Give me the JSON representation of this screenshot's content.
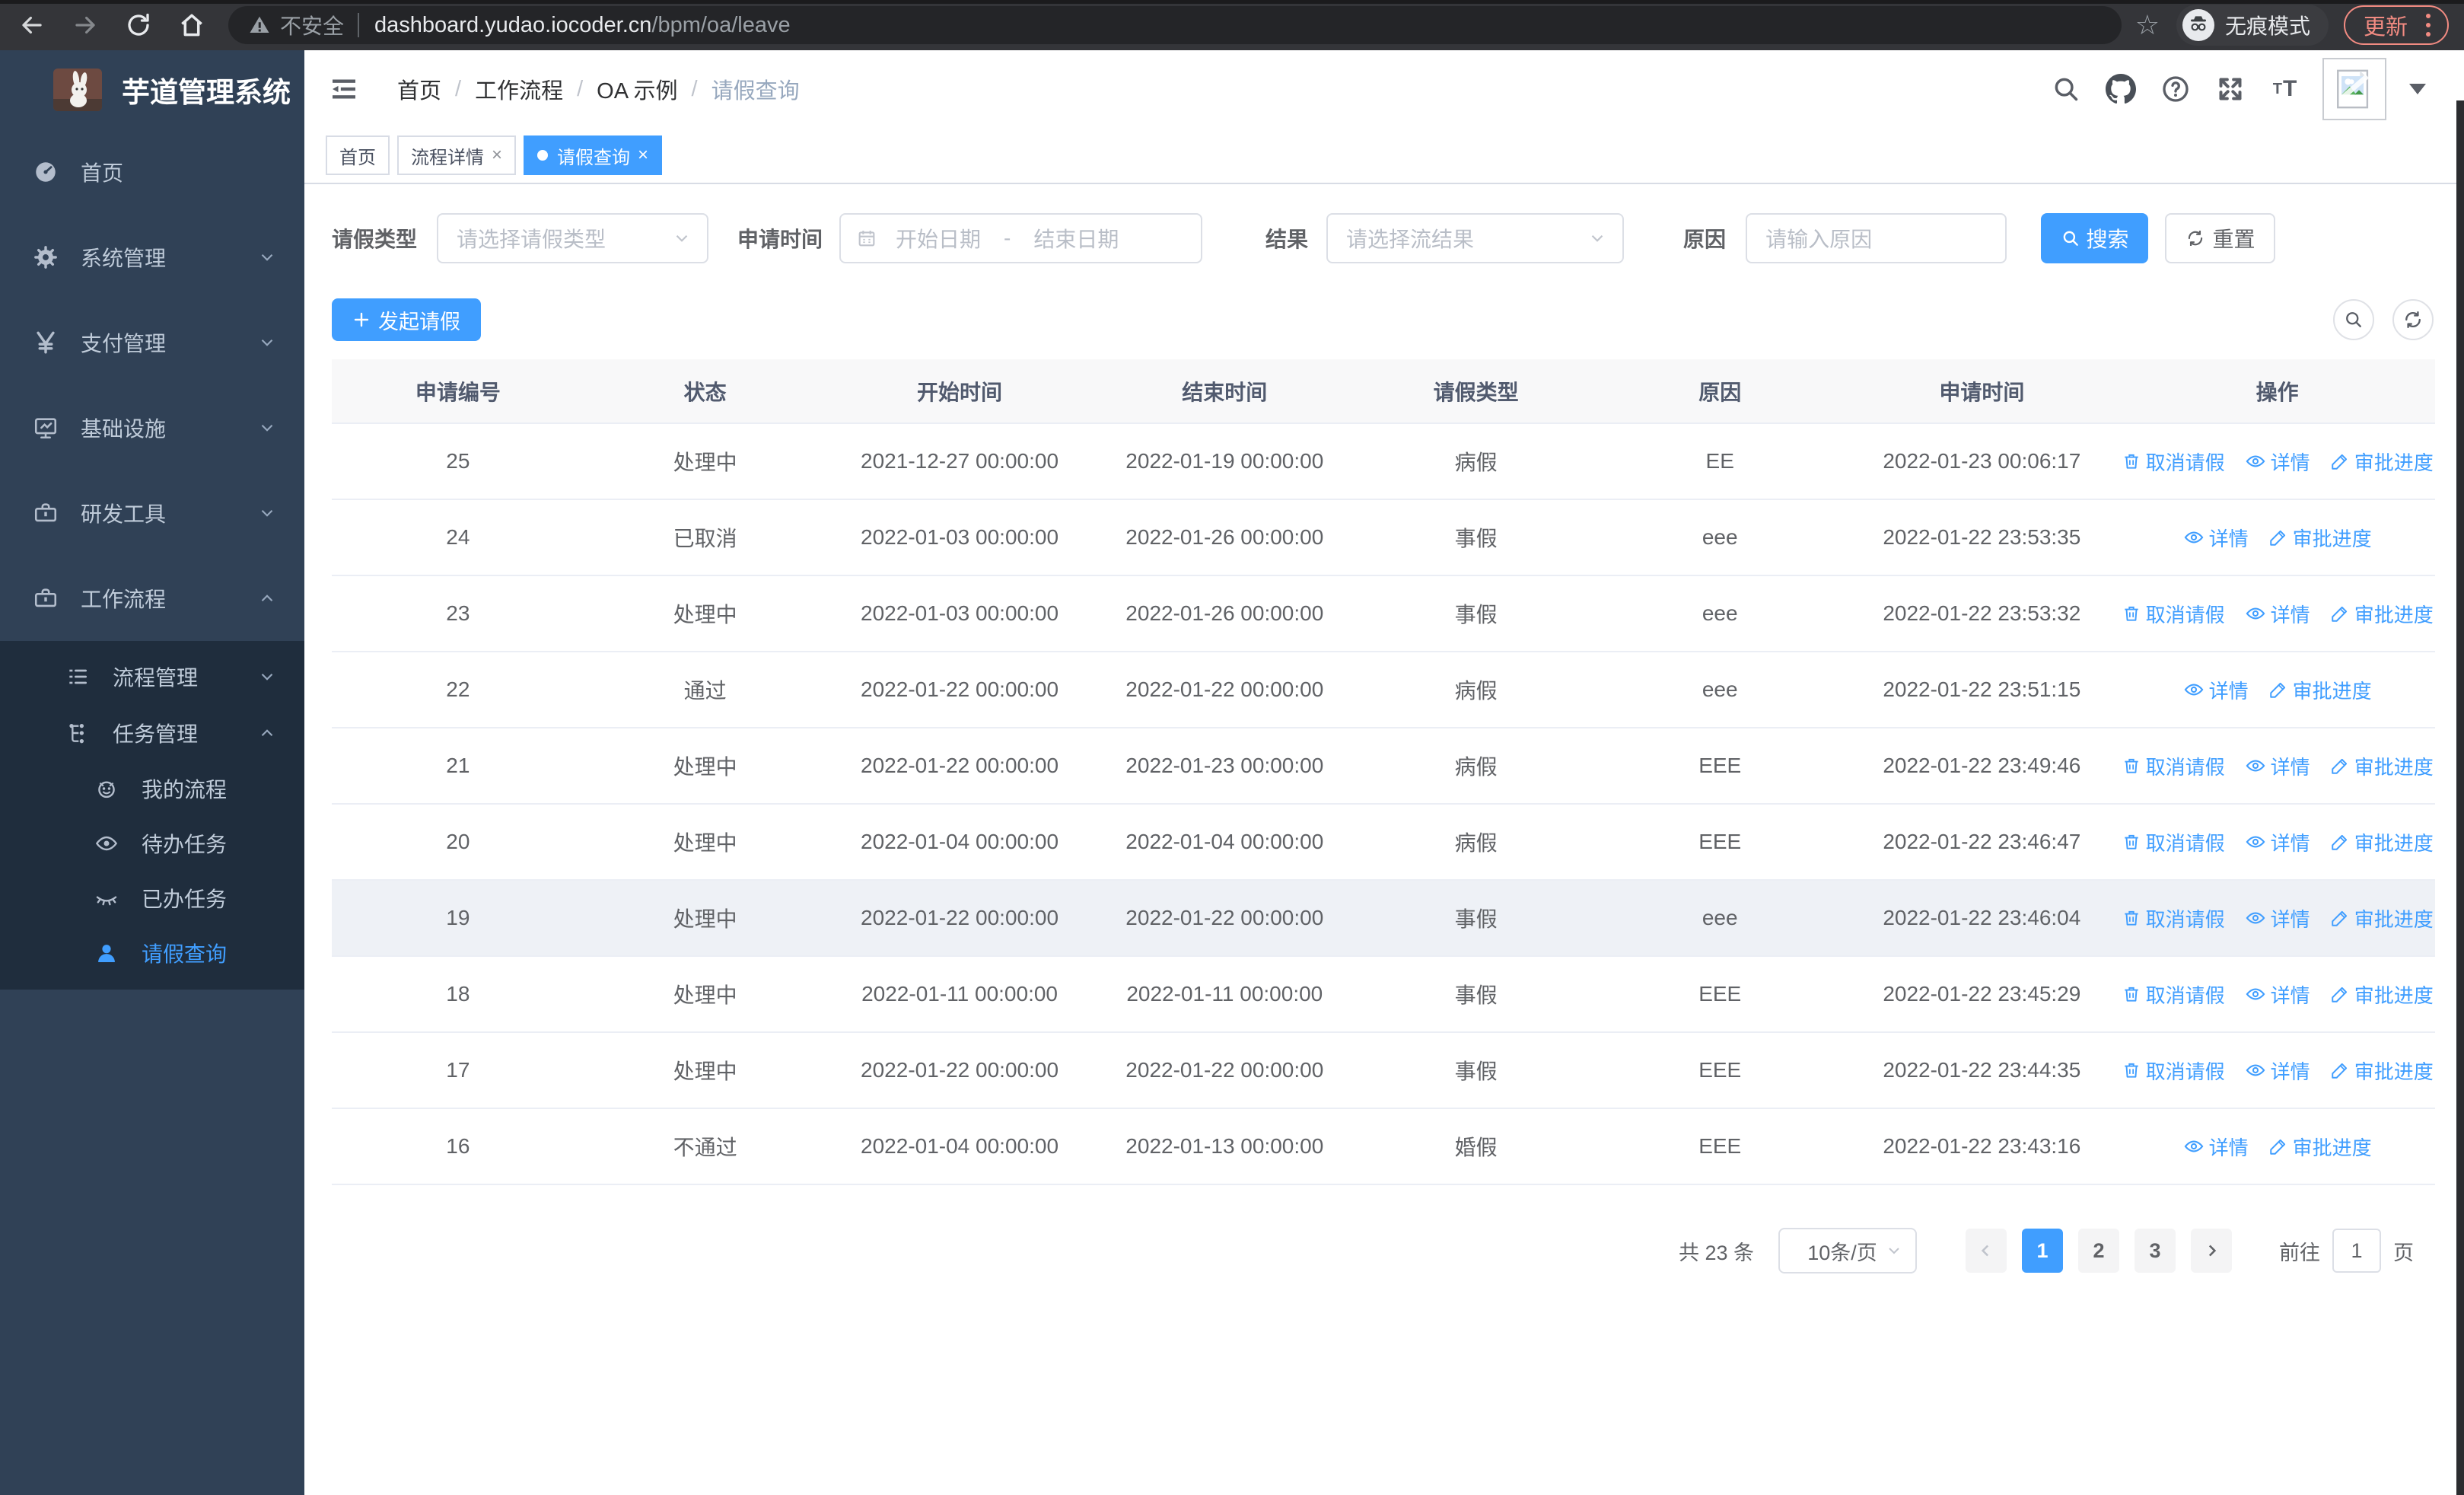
{
  "browser": {
    "security_label": "不安全",
    "url_host": "dashboard.yudao.iocoder.cn",
    "url_path": "/bpm/oa/leave",
    "incognito_label": "无痕模式",
    "update_label": "更新"
  },
  "sidebar": {
    "title": "芋道管理系统",
    "menu": [
      {
        "label": "首页"
      },
      {
        "label": "系统管理"
      },
      {
        "label": "支付管理"
      },
      {
        "label": "基础设施"
      },
      {
        "label": "研发工具"
      },
      {
        "label": "工作流程"
      },
      {
        "label": "流程管理"
      },
      {
        "label": "任务管理"
      },
      {
        "label": "我的流程"
      },
      {
        "label": "待办任务"
      },
      {
        "label": "已办任务"
      },
      {
        "label": "请假查询"
      }
    ]
  },
  "breadcrumb": {
    "items": [
      "首页",
      "工作流程",
      "OA 示例",
      "请假查询"
    ],
    "separator": "/"
  },
  "tabs": [
    {
      "label": "首页",
      "closable": false,
      "active": false
    },
    {
      "label": "流程详情",
      "closable": true,
      "active": false
    },
    {
      "label": "请假查询",
      "closable": true,
      "active": true
    }
  ],
  "filters": {
    "leave_type_label": "请假类型",
    "leave_type_placeholder": "请选择请假类型",
    "apply_time_label": "申请时间",
    "date_start_placeholder": "开始日期",
    "date_separator": "-",
    "date_end_placeholder": "结束日期",
    "result_label": "结果",
    "result_placeholder": "请选择流结果",
    "reason_label": "原因",
    "reason_placeholder": "请输入原因",
    "search_label": "搜索",
    "reset_label": "重置"
  },
  "toolbar": {
    "create_label": "发起请假"
  },
  "table": {
    "columns": [
      "申请编号",
      "状态",
      "开始时间",
      "结束时间",
      "请假类型",
      "原因",
      "申请时间",
      "操作"
    ],
    "action_labels": {
      "cancel": "取消请假",
      "detail": "详情",
      "progress": "审批进度"
    },
    "rows": [
      {
        "id": "25",
        "status": "处理中",
        "start": "2021-12-27 00:00:00",
        "end": "2022-01-19 00:00:00",
        "type": "病假",
        "reason": "EE",
        "apply_time": "2022-01-23 00:06:17",
        "actions": [
          "cancel",
          "detail",
          "progress"
        ],
        "highlighted": false
      },
      {
        "id": "24",
        "status": "已取消",
        "start": "2022-01-03 00:00:00",
        "end": "2022-01-26 00:00:00",
        "type": "事假",
        "reason": "eee",
        "apply_time": "2022-01-22 23:53:35",
        "actions": [
          "detail",
          "progress"
        ],
        "highlighted": false
      },
      {
        "id": "23",
        "status": "处理中",
        "start": "2022-01-03 00:00:00",
        "end": "2022-01-26 00:00:00",
        "type": "事假",
        "reason": "eee",
        "apply_time": "2022-01-22 23:53:32",
        "actions": [
          "cancel",
          "detail",
          "progress"
        ],
        "highlighted": false
      },
      {
        "id": "22",
        "status": "通过",
        "start": "2022-01-22 00:00:00",
        "end": "2022-01-22 00:00:00",
        "type": "病假",
        "reason": "eee",
        "apply_time": "2022-01-22 23:51:15",
        "actions": [
          "detail",
          "progress"
        ],
        "highlighted": false
      },
      {
        "id": "21",
        "status": "处理中",
        "start": "2022-01-22 00:00:00",
        "end": "2022-01-23 00:00:00",
        "type": "病假",
        "reason": "EEE",
        "apply_time": "2022-01-22 23:49:46",
        "actions": [
          "cancel",
          "detail",
          "progress"
        ],
        "highlighted": false
      },
      {
        "id": "20",
        "status": "处理中",
        "start": "2022-01-04 00:00:00",
        "end": "2022-01-04 00:00:00",
        "type": "病假",
        "reason": "EEE",
        "apply_time": "2022-01-22 23:46:47",
        "actions": [
          "cancel",
          "detail",
          "progress"
        ],
        "highlighted": false
      },
      {
        "id": "19",
        "status": "处理中",
        "start": "2022-01-22 00:00:00",
        "end": "2022-01-22 00:00:00",
        "type": "事假",
        "reason": "eee",
        "apply_time": "2022-01-22 23:46:04",
        "actions": [
          "cancel",
          "detail",
          "progress"
        ],
        "highlighted": true
      },
      {
        "id": "18",
        "status": "处理中",
        "start": "2022-01-11 00:00:00",
        "end": "2022-01-11 00:00:00",
        "type": "事假",
        "reason": "EEE",
        "apply_time": "2022-01-22 23:45:29",
        "actions": [
          "cancel",
          "detail",
          "progress"
        ],
        "highlighted": false
      },
      {
        "id": "17",
        "status": "处理中",
        "start": "2022-01-22 00:00:00",
        "end": "2022-01-22 00:00:00",
        "type": "事假",
        "reason": "EEE",
        "apply_time": "2022-01-22 23:44:35",
        "actions": [
          "cancel",
          "detail",
          "progress"
        ],
        "highlighted": false
      },
      {
        "id": "16",
        "status": "不通过",
        "start": "2022-01-04 00:00:00",
        "end": "2022-01-13 00:00:00",
        "type": "婚假",
        "reason": "EEE",
        "apply_time": "2022-01-22 23:43:16",
        "actions": [
          "detail",
          "progress"
        ],
        "highlighted": false
      }
    ]
  },
  "pagination": {
    "total": "共 23 条",
    "page_size": "10条/页",
    "pages": [
      "1",
      "2",
      "3"
    ],
    "active_page": "1",
    "goto_label": "前往",
    "goto_value": "1",
    "goto_unit": "页"
  },
  "colors": {
    "accent": "#409eff",
    "sidebar_bg": "#304156",
    "submenu_bg": "#1f2d3d",
    "update_accent": "#f28b82"
  }
}
